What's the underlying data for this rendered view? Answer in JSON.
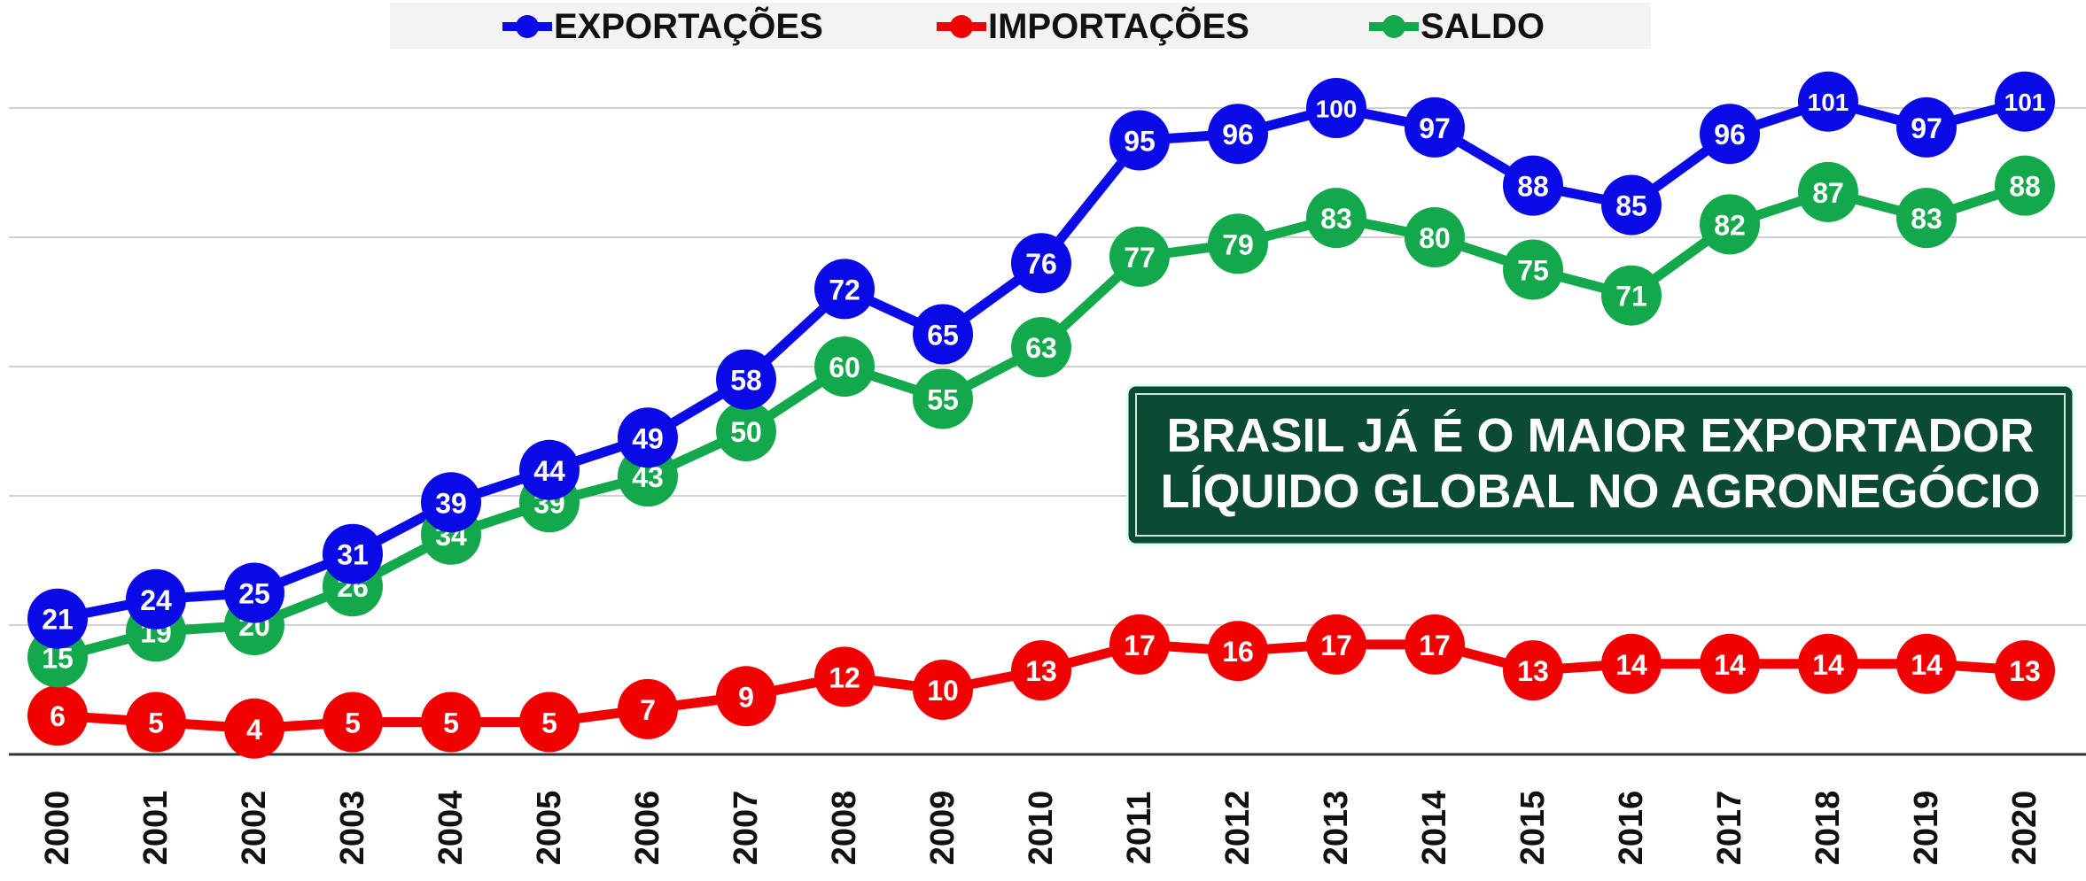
{
  "chart_data": {
    "type": "line",
    "categories": [
      "2000",
      "2001",
      "2002",
      "2003",
      "2004",
      "2005",
      "2006",
      "2007",
      "2008",
      "2009",
      "2010",
      "2011",
      "2012",
      "2013",
      "2014",
      "2015",
      "2016",
      "2017",
      "2018",
      "2019",
      "2020"
    ],
    "series": [
      {
        "name": "EXPORTAÇÕES",
        "color": "#0a0ae6",
        "values": [
          21,
          24,
          25,
          31,
          39,
          44,
          49,
          58,
          72,
          65,
          76,
          95,
          96,
          100,
          97,
          88,
          85,
          96,
          101,
          97,
          101
        ]
      },
      {
        "name": "IMPORTAÇÕES",
        "color": "#f00000",
        "values": [
          6,
          5,
          4,
          5,
          5,
          5,
          7,
          9,
          12,
          10,
          13,
          17,
          16,
          17,
          17,
          13,
          14,
          14,
          14,
          14,
          13
        ]
      },
      {
        "name": "SALDO",
        "color": "#12a84b",
        "values": [
          15,
          19,
          20,
          26,
          34,
          39,
          43,
          50,
          60,
          55,
          63,
          77,
          79,
          83,
          80,
          75,
          71,
          82,
          87,
          83,
          88
        ]
      }
    ],
    "ylim": [
      0,
      110
    ],
    "yticks": [
      0,
      20,
      40,
      60,
      80,
      100
    ],
    "grid": true,
    "legend": "top",
    "annotation": [
      "BRASIL JÁ É O MAIOR EXPORTADOR",
      "LÍQUIDO GLOBAL NO AGRONEGÓCIO"
    ]
  }
}
